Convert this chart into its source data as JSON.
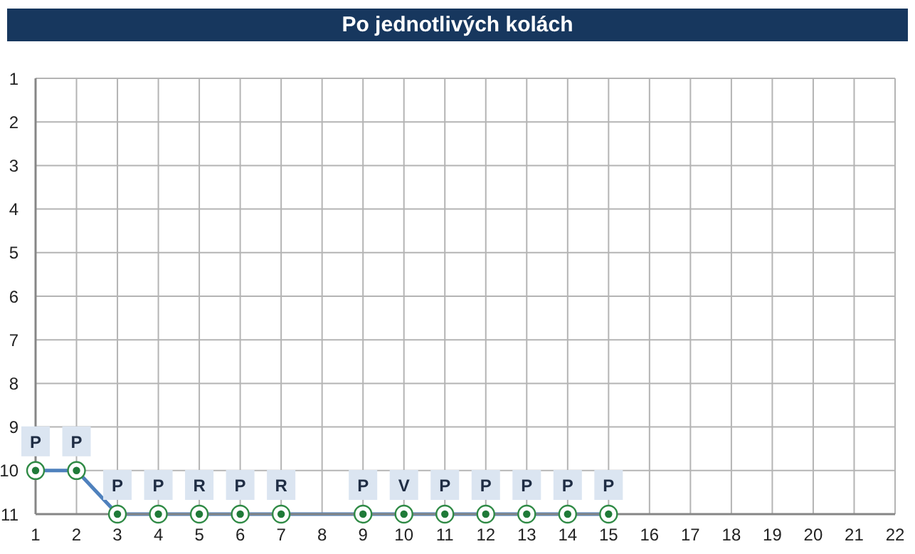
{
  "chart_data": {
    "type": "line",
    "title": "Po jednotlivých kolách",
    "x": [
      1,
      2,
      3,
      4,
      5,
      6,
      7,
      9,
      10,
      11,
      12,
      13,
      14,
      15
    ],
    "series": [
      {
        "color": "#4f81bd",
        "values": [
          10,
          10,
          11,
          11,
          11,
          11,
          11,
          11,
          11,
          11,
          11,
          11,
          11,
          11
        ],
        "value_labels": [
          "P",
          "P",
          "P",
          "P",
          "R",
          "P",
          "R",
          "P",
          "V",
          "P",
          "P",
          "P",
          "P",
          "P"
        ]
      }
    ],
    "xlim": [
      1,
      22
    ],
    "xticks": [
      1,
      2,
      3,
      4,
      5,
      6,
      7,
      8,
      9,
      10,
      11,
      12,
      13,
      14,
      15,
      16,
      17,
      18,
      19,
      20,
      21,
      22
    ],
    "ylim": [
      11,
      1
    ],
    "yticks": [
      1,
      2,
      3,
      4,
      5,
      6,
      7,
      8,
      9,
      10,
      11
    ],
    "grid": true,
    "marker": "circle"
  }
}
